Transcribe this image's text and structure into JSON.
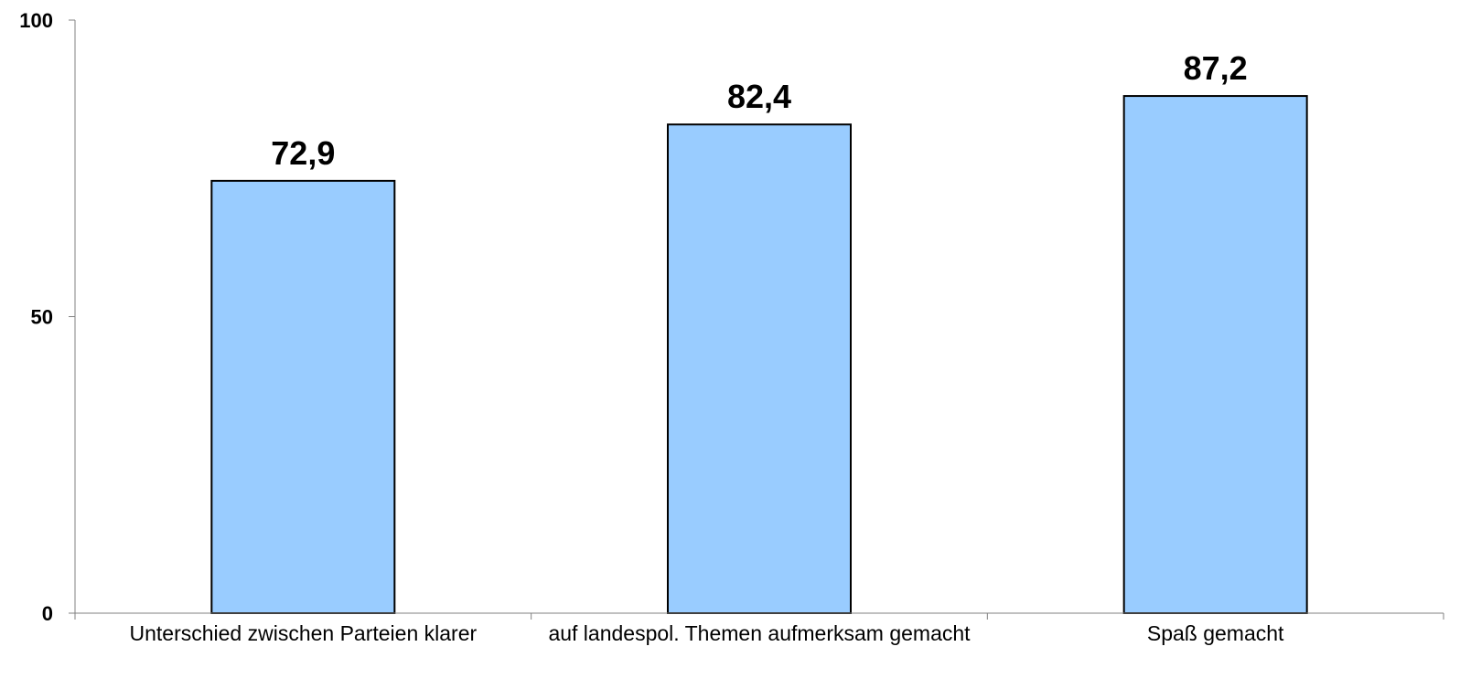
{
  "chart_data": {
    "type": "bar",
    "categories": [
      "Unterschied zwischen Parteien klarer",
      "auf landespol. Themen aufmerksam gemacht",
      "Spaß gemacht"
    ],
    "values": [
      72.9,
      82.4,
      87.2
    ],
    "value_labels": [
      "72,9",
      "82,4",
      "87,2"
    ],
    "ylim": [
      0,
      100
    ],
    "yticks": [
      0,
      50,
      100
    ],
    "ytick_labels": [
      "0",
      "50",
      "100"
    ],
    "bar_color": "#99ccff",
    "bar_edge_color": "#000000",
    "grid": false
  }
}
